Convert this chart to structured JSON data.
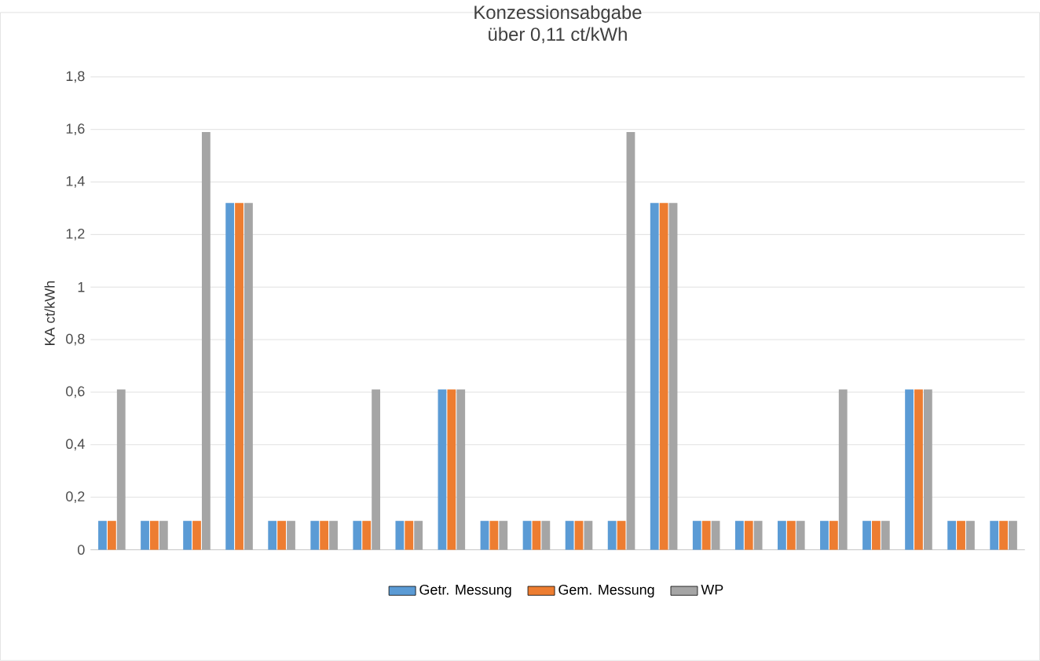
{
  "chart_data": {
    "type": "bar",
    "title": "Konzessionsabgabe",
    "subtitle": "über 0,11 ct/kWh",
    "ylabel": "KA ct/kWh",
    "categories": [
      null,
      null,
      null,
      null,
      null,
      null,
      null,
      null,
      null,
      null,
      null,
      null,
      null,
      null,
      null,
      null,
      null,
      null,
      null,
      null,
      null,
      null
    ],
    "series": [
      {
        "name": "Getr. Messung",
        "color": "#5b9bd5",
        "values": [
          0.11,
          0.11,
          0.11,
          1.32,
          0.11,
          0.11,
          0.11,
          0.11,
          0.61,
          0.11,
          0.11,
          0.11,
          0.11,
          1.32,
          0.11,
          0.11,
          0.11,
          0.11,
          0.11,
          0.61,
          0.11,
          0.11
        ]
      },
      {
        "name": "Gem. Messung",
        "color": "#ed7d31",
        "values": [
          0.11,
          0.11,
          0.11,
          1.32,
          0.11,
          0.11,
          0.11,
          0.11,
          0.61,
          0.11,
          0.11,
          0.11,
          0.11,
          1.32,
          0.11,
          0.11,
          0.11,
          0.11,
          0.11,
          0.61,
          0.11,
          0.11
        ]
      },
      {
        "name": "WP",
        "color": "#a5a5a5",
        "values": [
          0.61,
          0.11,
          1.59,
          1.32,
          0.11,
          0.11,
          0.61,
          0.11,
          0.61,
          0.11,
          0.11,
          0.11,
          1.59,
          1.32,
          0.11,
          0.11,
          0.11,
          0.61,
          0.11,
          0.61,
          0.11,
          0.11
        ]
      }
    ],
    "ylim": [
      0,
      1.8
    ],
    "yticks": [
      0,
      {
        "value": 0.2,
        "label": "0,2"
      },
      {
        "value": 0.4,
        "label": "0,4"
      },
      {
        "value": 0.6,
        "label": "0,6"
      },
      {
        "value": 0.8,
        "label": "0,8"
      },
      1,
      {
        "value": 1.2,
        "label": "1,2"
      },
      {
        "value": 1.4,
        "label": "1,4"
      },
      {
        "value": 1.6,
        "label": "1,6"
      },
      {
        "value": 1.8,
        "label": "1,8"
      }
    ],
    "grid": "y",
    "legend": "bottom"
  }
}
